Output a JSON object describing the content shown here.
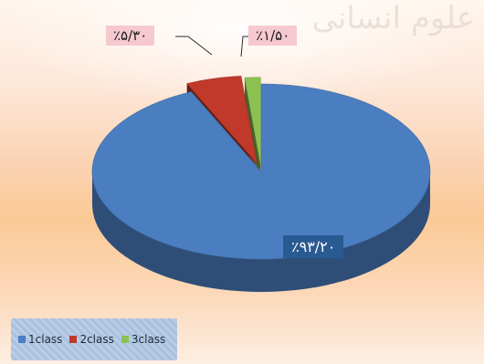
{
  "watermark": "علوم انسانی",
  "chart_data": {
    "type": "pie",
    "style": "3d-exploded",
    "title": "",
    "categories": [
      "1class",
      "2class",
      "3class"
    ],
    "values": [
      93.2,
      5.3,
      1.5
    ],
    "data_labels": [
      "٪۹۳/۲۰",
      "٪۵/۳۰",
      "٪۱/۵۰"
    ],
    "colors": [
      "#4a7ec0",
      "#c0392b",
      "#8cc152"
    ],
    "legend_position": "bottom-left"
  },
  "legend": {
    "items": [
      {
        "label": "1class",
        "color": "#4a7ec0"
      },
      {
        "label": "2class",
        "color": "#c0392b"
      },
      {
        "label": "3class",
        "color": "#8cc152"
      }
    ]
  }
}
